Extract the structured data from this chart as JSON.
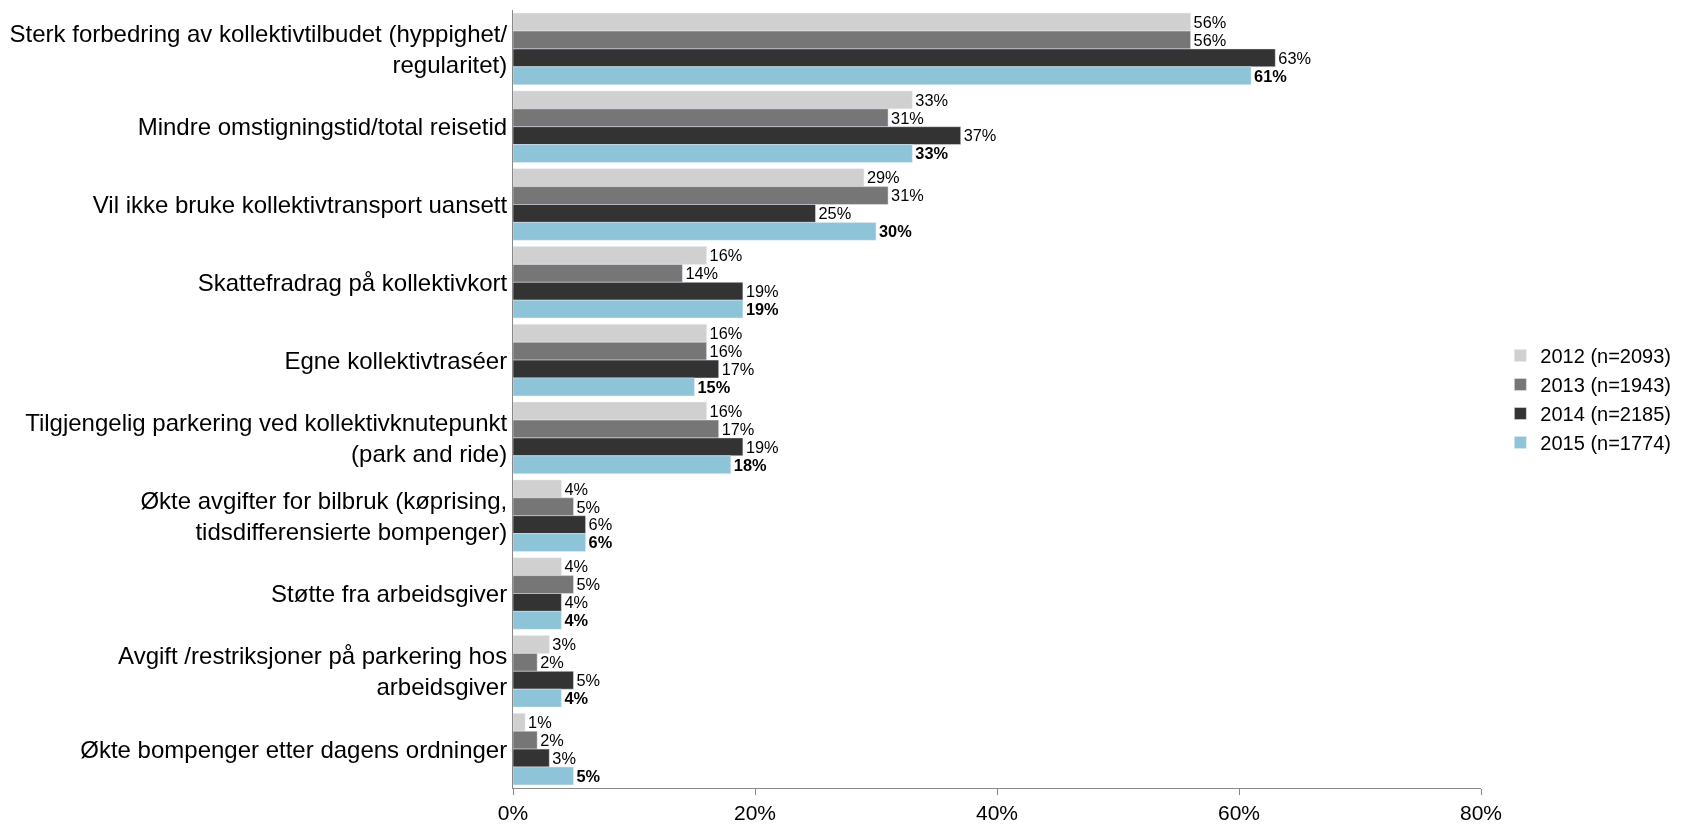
{
  "chart_data": {
    "type": "bar",
    "orientation": "horizontal",
    "categories": [
      "Sterk forbedring av kollektivtilbudet (hyppighet/ regularitet)",
      "Mindre omstigningstid/total reisetid",
      "Vil ikke bruke kollektivtransport uansett",
      "Skattefradrag på kollektivkort",
      "Egne kollektivtraséer",
      "Tilgjengelig parkering ved kollektivknutepunkt (park and ride)",
      "Økte avgifter for bilbruk (køprising, tidsdifferensierte bompenger)",
      "Støtte fra arbeidsgiver",
      "Avgift /restriksjoner på parkering hos arbeidsgiver",
      "Økte bompenger etter dagens ordninger"
    ],
    "series": [
      {
        "name": "2012 (n=2093)",
        "color": "#d0d0d0",
        "values": [
          56,
          33,
          29,
          16,
          16,
          16,
          4,
          4,
          3,
          1
        ],
        "value_labels": [
          "56%",
          "33%",
          "29%",
          "16%",
          "16%",
          "16%",
          "4%",
          "4%",
          "3%",
          "1%"
        ]
      },
      {
        "name": "2013 (n=1943)",
        "color": "#767676",
        "values": [
          56,
          31,
          31,
          14,
          16,
          17,
          5,
          5,
          2,
          2
        ],
        "value_labels": [
          "56%",
          "31%",
          "31%",
          "14%",
          "16%",
          "17%",
          "5%",
          "5%",
          "2%",
          "2%"
        ]
      },
      {
        "name": "2014 (n=2185)",
        "color": "#333333",
        "values": [
          63,
          37,
          25,
          19,
          17,
          19,
          6,
          4,
          5,
          3
        ],
        "value_labels": [
          "63%",
          "37%",
          "25%",
          "19%",
          "17%",
          "19%",
          "6%",
          "4%",
          "5%",
          "3%"
        ]
      },
      {
        "name": "2015 (n=1774)",
        "color": "#8ec4d7",
        "values": [
          61,
          33,
          30,
          19,
          15,
          18,
          6,
          4,
          4,
          5
        ],
        "value_labels": [
          "61%",
          "33%",
          "30%",
          "19%",
          "15%",
          "18%",
          "6%",
          "4%",
          "4%",
          "5%"
        ]
      }
    ],
    "xlim": [
      0,
      80
    ],
    "xticks": [
      {
        "value": 0,
        "label": "0%"
      },
      {
        "value": 20,
        "label": "20%"
      },
      {
        "value": 40,
        "label": "40%"
      },
      {
        "value": 60,
        "label": "60%"
      },
      {
        "value": 80,
        "label": "80%"
      }
    ],
    "legend": "right"
  }
}
